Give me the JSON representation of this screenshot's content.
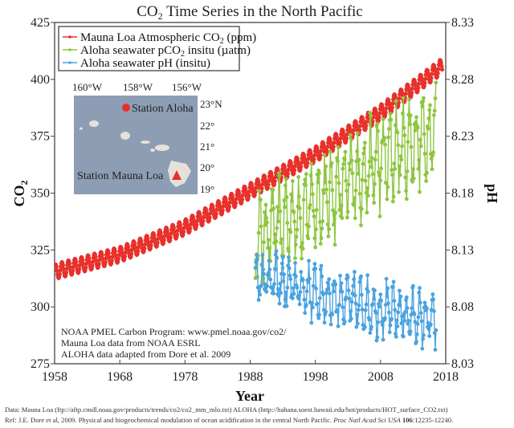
{
  "chart_data": {
    "type": "scatter",
    "title": "CO₂ Time Series in the North Pacific",
    "title_parts": {
      "pre": "CO",
      "sub": "2",
      "post": " Time Series in the North Pacific"
    },
    "xlabel": "Year",
    "ylabel_left": {
      "pre": "CO",
      "sub": "2"
    },
    "ylabel_right": "pH",
    "xlim": [
      1958,
      2018
    ],
    "ylim_left": [
      275,
      425
    ],
    "ylim_right": [
      8.03,
      8.33
    ],
    "x_ticks": [
      "1958",
      "1968",
      "1978",
      "1988",
      "1998",
      "2008",
      "2018"
    ],
    "y_ticks_left": [
      "275",
      "300",
      "325",
      "350",
      "375",
      "400",
      "425"
    ],
    "y_ticks_right": [
      "8.03",
      "8.08",
      "8.13",
      "8.18",
      "8.23",
      "8.28",
      "8.33"
    ],
    "grid": false,
    "legend_position": "top-left",
    "series": [
      {
        "name": "Mauna Loa Atmospheric CO₂ (ppm)",
        "legend_parts": {
          "pre": "Mauna Loa Atmospheric CO",
          "sub": "2",
          "post": " (ppm)"
        },
        "color": "#e8302a",
        "axis": "left",
        "x_range": [
          1958.2,
          2017.5
        ],
        "trend_points": [
          [
            1958,
            315.5
          ],
          [
            1968,
            323
          ],
          [
            1978,
            335
          ],
          [
            1988,
            351
          ],
          [
            1998,
            367
          ],
          [
            2008,
            385.5
          ],
          [
            2017.5,
            406
          ]
        ],
        "seasonal_amplitude": 3.3
      },
      {
        "name": "Aloha seawater pCO₂ insitu (µatm)",
        "legend_parts": {
          "pre": "Aloha seawater pCO",
          "sub": "2",
          "post": " insitu (µatm)"
        },
        "color": "#8dc63f",
        "axis": "left",
        "x_range": [
          1988.8,
          2016.5
        ],
        "trend_points": [
          [
            1989,
            330
          ],
          [
            1998,
            345
          ],
          [
            2008,
            364
          ],
          [
            2016.5,
            378
          ]
        ],
        "seasonal_amplitude": 16
      },
      {
        "name": "Aloha seawater pH (insitu)",
        "legend_parts": {
          "pre": "Aloha seawater pH (insitu)",
          "sub": "",
          "post": ""
        },
        "color": "#4aa3df",
        "axis": "right",
        "x_range": [
          1988.8,
          2016.5
        ],
        "trend_points": [
          [
            1989,
            8.108
          ],
          [
            1998,
            8.092
          ],
          [
            2008,
            8.078
          ],
          [
            2016.5,
            8.067
          ]
        ],
        "seasonal_amplitude": 0.018
      }
    ],
    "annotations": [
      "NOAA PMEL Carbon Program: www.pmel.noaa.gov/co2/",
      "Mauna Loa data from NOAA ESRL",
      "ALOHA data adapted from Dore et al. 2009"
    ]
  },
  "inset_map": {
    "lon_labels": [
      "160°W",
      "158°W",
      "156°W"
    ],
    "lat_labels": [
      "23°N",
      "22°",
      "21°",
      "20°",
      "19°"
    ],
    "station_aloha": "Station Aloha",
    "station_mauna_loa": "Station Mauna Loa",
    "colors": {
      "ocean": "#8d9db3",
      "land": "#e6e1d8",
      "marker": "#e8302a"
    }
  },
  "footer": {
    "line1": "Data: Mauna Loa (ftp://aftp.cmdl.noaa.gov/products/trends/co2/co2_mm_mlo.txt)  ALOHA (http://hahana.soest.hawaii.edu/hot/products/HOT_surface_CO2.txt)",
    "line2_pre": "Ref: J.E. Dore et al, 2009. Physical and biogeochemical modulation of ocean acidification in the central North Pacific. ",
    "line2_journal": "Proc Natl Acad Sci USA",
    "line2_volume": " 106",
    "line2_pages": ":12235-12240."
  }
}
